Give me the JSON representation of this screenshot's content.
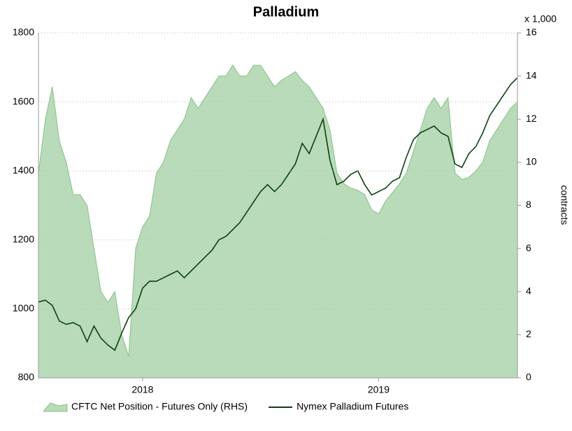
{
  "chart_data": {
    "type": "line",
    "title": "Palladium",
    "y2_unit_label": "x 1,000",
    "y2_label": "contracts",
    "ylim": [
      800,
      1800
    ],
    "yticks": [
      800,
      1000,
      1200,
      1400,
      1600,
      1800
    ],
    "y2lim": [
      0,
      16
    ],
    "y2ticks": [
      0,
      2,
      4,
      6,
      8,
      10,
      12,
      14,
      16
    ],
    "xticks": [
      {
        "value": 15,
        "label": "2018"
      },
      {
        "value": 49,
        "label": "2019"
      }
    ],
    "grid": true,
    "legend": "bottom",
    "series": [
      {
        "name": "CFTC Net Position - Futures Only (RHS)",
        "type": "area",
        "axis": "y2",
        "color": "#b9dbb9",
        "edge": "#86c286",
        "values": [
          9.5,
          12,
          13.5,
          11,
          10,
          8.5,
          8.5,
          8,
          6,
          4,
          3.5,
          4,
          2,
          1,
          6,
          7,
          7.5,
          9.5,
          10,
          11,
          11.5,
          12,
          13,
          12.5,
          13,
          13.5,
          14,
          14,
          14.5,
          14,
          14,
          14.5,
          14.5,
          14,
          13.5,
          13.8,
          14,
          14.2,
          13.8,
          13.5,
          13,
          12.5,
          11.5,
          9.5,
          9,
          8.8,
          8.7,
          8.5,
          7.8,
          7.6,
          8.2,
          8.6,
          9,
          9.5,
          10.5,
          11.5,
          12.5,
          13,
          12.5,
          13,
          9.5,
          9.2,
          9.3,
          9.6,
          10,
          11,
          11.5,
          12,
          12.5,
          12.8
        ]
      },
      {
        "name": "Nymex Palladium Futures",
        "type": "line",
        "color": "#0d4010",
        "values": [
          1020,
          1025,
          1010,
          965,
          955,
          960,
          950,
          905,
          950,
          915,
          895,
          880,
          930,
          975,
          1000,
          1060,
          1080,
          1080,
          1090,
          1100,
          1110,
          1090,
          1110,
          1130,
          1150,
          1170,
          1200,
          1210,
          1230,
          1250,
          1280,
          1310,
          1340,
          1360,
          1340,
          1360,
          1390,
          1420,
          1480,
          1450,
          1500,
          1550,
          1430,
          1360,
          1370,
          1390,
          1400,
          1360,
          1330,
          1340,
          1350,
          1370,
          1380,
          1440,
          1490,
          1510,
          1520,
          1530,
          1510,
          1500,
          1420,
          1410,
          1450,
          1470,
          1510,
          1560,
          1590,
          1620,
          1650,
          1670
        ]
      }
    ]
  }
}
